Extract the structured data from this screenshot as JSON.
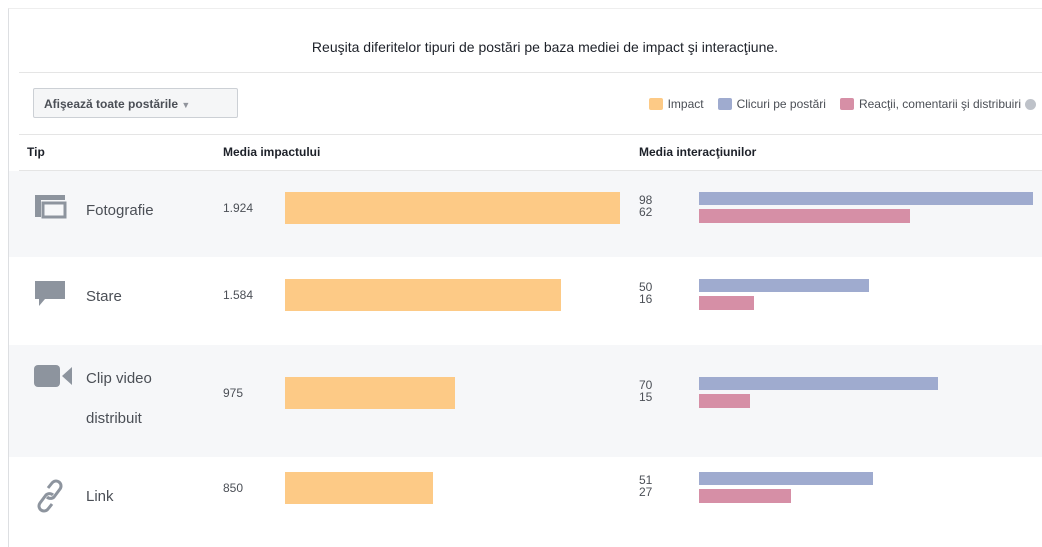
{
  "title": "Reuşita diferitelor tipuri de postări pe baza mediei de impact şi interacţiune.",
  "filter": "Afişează toate postările",
  "legend": [
    {
      "name": "Impact",
      "color": "#fdca86"
    },
    {
      "name": "Clicuri pe postări",
      "color": "#9fabcf"
    },
    {
      "name": "Reacţii, comentarii şi distribuiri",
      "color": "#d68fa6"
    }
  ],
  "columns": [
    "Tip",
    "Media impactului",
    "Media interacţiunilor"
  ],
  "rows": [
    {
      "type": "Fotografie",
      "impact": 1924,
      "impact_label": "1.924",
      "clicks": 98,
      "reactions": 62
    },
    {
      "type": "Stare",
      "impact": 1584,
      "impact_label": "1.584",
      "clicks": 50,
      "reactions": 16
    },
    {
      "type": "Clip video distribuit",
      "impact": 975,
      "impact_label": "975",
      "clicks": 70,
      "reactions": 15
    },
    {
      "type": "Link",
      "impact": 850,
      "impact_label": "850",
      "clicks": 51,
      "reactions": 27
    }
  ]
}
